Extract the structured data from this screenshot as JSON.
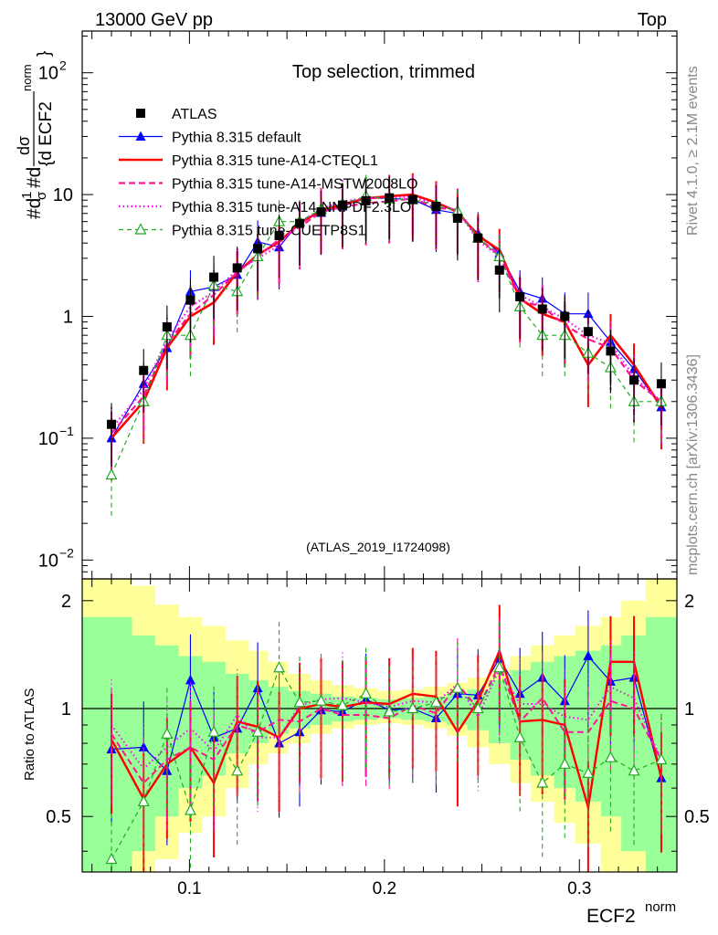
{
  "header": {
    "energy_label": "13000 GeV pp",
    "process_label": "Top",
    "right_label": "Rivet 4.1.0, ≥ 2.1M events",
    "site_label": "mcplots.cern.ch [arXiv:1306.3436]",
    "analysis_label": "(ATLAS_2019_I1724098)"
  },
  "chart_data": [
    {
      "type": "line",
      "panel": "main",
      "title": "Top selection, trimmed",
      "ylabel": "#d¹⁄σ #d dσ / {d ECF2 norm}",
      "ylabel_parts": {
        "prefix": "#d",
        "frac1_num": "1",
        "frac1_den": "σ",
        "mid": "#d",
        "frac2_num": "dσ",
        "frac2_den": "{d ECF2",
        "sup": "norm",
        "close": "}"
      },
      "yscale": "log",
      "ylim": [
        0.007,
        220
      ],
      "xlim": [
        0.045,
        0.35
      ],
      "ytick_labels": [
        {
          "base": "10",
          "exp": "−2",
          "value": 0.01
        },
        {
          "base": "10",
          "exp": "−1",
          "value": 0.1
        },
        {
          "base": "1",
          "exp": "",
          "value": 1
        },
        {
          "base": "10",
          "exp": "",
          "value": 10
        },
        {
          "base": "10",
          "exp": "2",
          "value": 100
        }
      ],
      "x": [
        0.06,
        0.0765,
        0.0885,
        0.1005,
        0.1125,
        0.1245,
        0.135,
        0.146,
        0.1565,
        0.1675,
        0.1785,
        0.1905,
        0.2025,
        0.2145,
        0.2265,
        0.2375,
        0.248,
        0.259,
        0.2695,
        0.281,
        0.2925,
        0.3045,
        0.316,
        0.328,
        0.342
      ],
      "series": [
        {
          "name": "ATLAS",
          "color": "#000000",
          "marker": "square",
          "values": [
            0.13,
            0.36,
            0.82,
            1.36,
            2.1,
            2.5,
            3.6,
            4.6,
            5.8,
            7.2,
            8.2,
            8.9,
            9.4,
            9.1,
            8.0,
            6.4,
            4.4,
            2.4,
            1.45,
            1.15,
            1.0,
            0.75,
            0.52,
            0.3,
            0.28
          ]
        },
        {
          "name": "Pythia 8.315 default",
          "color": "#0000ff",
          "marker": "triangle",
          "dash": "",
          "values": [
            0.1,
            0.28,
            0.55,
            1.6,
            1.75,
            2.2,
            4.1,
            3.7,
            6.0,
            7.1,
            8.0,
            9.4,
            9.3,
            9.1,
            7.5,
            7.0,
            4.8,
            3.3,
            1.6,
            1.4,
            1.05,
            1.05,
            0.62,
            0.37,
            0.18
          ]
        },
        {
          "name": "Pythia 8.315 tune-A14-CTEQL1",
          "color": "#ff0000",
          "marker": "",
          "dash": "",
          "width": 2.6,
          "values": [
            0.1,
            0.2,
            0.55,
            1.0,
            1.3,
            2.3,
            3.2,
            4.1,
            5.8,
            7.4,
            8.3,
            9.3,
            9.7,
            10.0,
            8.6,
            7.2,
            4.6,
            3.5,
            1.4,
            1.05,
            0.9,
            0.4,
            0.7,
            0.4,
            0.18
          ]
        },
        {
          "name": "Pythia 8.315 tune-A14-MSTW2008LO",
          "color": "#ff1493",
          "marker": "",
          "dash": "7,4",
          "width": 2.2,
          "values": [
            0.11,
            0.22,
            0.6,
            1.05,
            1.5,
            2.3,
            3.1,
            4.3,
            5.4,
            7.2,
            7.9,
            8.5,
            8.8,
            9.3,
            7.8,
            7.5,
            4.4,
            3.2,
            1.35,
            1.2,
            0.85,
            0.65,
            0.55,
            0.3,
            0.2
          ]
        },
        {
          "name": "Pythia 8.315 tune-A14-NNPDF2.3LO",
          "color": "#ff00ff",
          "marker": "",
          "dash": "1.5,3",
          "width": 2.2,
          "values": [
            0.12,
            0.25,
            0.65,
            1.2,
            1.6,
            2.4,
            3.0,
            3.8,
            5.9,
            7.6,
            8.8,
            9.3,
            9.5,
            9.6,
            8.3,
            7.4,
            4.2,
            3.1,
            1.5,
            1.2,
            0.95,
            0.7,
            0.6,
            0.32,
            0.2
          ]
        },
        {
          "name": "Pythia 8.315 tune-CUETP8S1",
          "color": "#22aa22",
          "marker": "open-triangle",
          "dash": "5,4",
          "width": 1.2,
          "values": [
            0.05,
            0.2,
            0.7,
            0.7,
            1.8,
            1.6,
            3.1,
            6.0,
            6.0,
            7.6,
            8.4,
            9.7,
            9.2,
            9.1,
            8.3,
            7.3,
            4.4,
            3.1,
            1.2,
            0.7,
            0.7,
            0.5,
            0.38,
            0.2,
            0.2
          ]
        }
      ],
      "legend_position": "top-left"
    },
    {
      "type": "line",
      "panel": "ratio",
      "ylabel": "Ratio to ATLAS",
      "xlabel": "ECF2",
      "xlabel_sup": "norm",
      "ylim": [
        0.35,
        2.3
      ],
      "xlim": [
        0.045,
        0.35
      ],
      "xtick_labels": [
        "0.1",
        "0.2",
        "0.3"
      ],
      "xtick_values": [
        0.1,
        0.2,
        0.3
      ],
      "ytick_labels": [
        "0.5",
        "1",
        "2"
      ],
      "ytick_values": [
        0.5,
        1,
        2
      ],
      "band_edges": [
        0.045,
        0.0705,
        0.0825,
        0.0945,
        0.1065,
        0.1185,
        0.1305,
        0.1405,
        0.1505,
        0.162,
        0.173,
        0.1845,
        0.1965,
        0.2085,
        0.2205,
        0.232,
        0.2425,
        0.2535,
        0.2645,
        0.275,
        0.287,
        0.298,
        0.311,
        0.3215,
        0.334,
        0.35
      ],
      "stat_band": [
        [
          0.25,
          1.8
        ],
        [
          0.4,
          1.6
        ],
        [
          0.5,
          1.5
        ],
        [
          0.6,
          1.4
        ],
        [
          0.65,
          1.35
        ],
        [
          0.75,
          1.25
        ],
        [
          0.8,
          1.2
        ],
        [
          0.85,
          1.15
        ],
        [
          0.88,
          1.12
        ],
        [
          0.9,
          1.1
        ],
        [
          0.92,
          1.08
        ],
        [
          0.93,
          1.07
        ],
        [
          0.94,
          1.06
        ],
        [
          0.93,
          1.07
        ],
        [
          0.92,
          1.08
        ],
        [
          0.9,
          1.1
        ],
        [
          0.87,
          1.13
        ],
        [
          0.8,
          1.2
        ],
        [
          0.72,
          1.28
        ],
        [
          0.65,
          1.35
        ],
        [
          0.6,
          1.4
        ],
        [
          0.55,
          1.45
        ],
        [
          0.5,
          1.5
        ],
        [
          0.4,
          1.6
        ],
        [
          0.3,
          1.8
        ]
      ],
      "syst_band": [
        [
          0.15,
          2.35
        ],
        [
          0.3,
          2.2
        ],
        [
          0.38,
          1.95
        ],
        [
          0.45,
          1.8
        ],
        [
          0.5,
          1.7
        ],
        [
          0.6,
          1.55
        ],
        [
          0.7,
          1.45
        ],
        [
          0.75,
          1.35
        ],
        [
          0.8,
          1.25
        ],
        [
          0.85,
          1.2
        ],
        [
          0.88,
          1.16
        ],
        [
          0.9,
          1.14
        ],
        [
          0.91,
          1.12
        ],
        [
          0.9,
          1.13
        ],
        [
          0.88,
          1.15
        ],
        [
          0.84,
          1.18
        ],
        [
          0.78,
          1.22
        ],
        [
          0.7,
          1.3
        ],
        [
          0.62,
          1.4
        ],
        [
          0.55,
          1.5
        ],
        [
          0.48,
          1.6
        ],
        [
          0.42,
          1.7
        ],
        [
          0.35,
          1.8
        ],
        [
          0.3,
          2.0
        ],
        [
          0.2,
          2.35
        ]
      ],
      "series": [
        {
          "name": "Pythia 8.315 default",
          "color": "#0000ff",
          "marker": "triangle",
          "dash": "",
          "width": 1.2,
          "values": [
            0.77,
            0.78,
            0.67,
            1.2,
            0.83,
            0.88,
            1.14,
            0.8,
            0.86,
            0.99,
            0.98,
            1.06,
            0.99,
            1.0,
            0.94,
            1.1,
            1.09,
            1.38,
            1.1,
            1.22,
            1.05,
            1.4,
            1.19,
            1.22,
            0.64
          ]
        },
        {
          "name": "Pythia 8.315 tune-A14-CTEQL1",
          "color": "#ff0000",
          "marker": "",
          "dash": "",
          "width": 2.4,
          "values": [
            0.82,
            0.56,
            0.7,
            0.78,
            0.62,
            0.92,
            0.89,
            0.83,
            1.0,
            1.03,
            1.01,
            1.04,
            1.03,
            1.1,
            1.08,
            0.86,
            1.05,
            1.45,
            0.92,
            0.93,
            0.9,
            0.53,
            1.35,
            1.35,
            0.64
          ]
        },
        {
          "name": "Pythia 8.315 tune-A14-MSTW2008LO",
          "color": "#ff1493",
          "marker": "",
          "dash": "7,4",
          "width": 2.0,
          "values": [
            0.85,
            0.62,
            0.72,
            0.78,
            0.72,
            0.9,
            0.86,
            0.93,
            0.92,
            1.0,
            0.96,
            0.96,
            0.94,
            1.02,
            0.97,
            1.17,
            1.0,
            1.33,
            0.92,
            1.07,
            0.86,
            0.86,
            1.05,
            1.0,
            0.72
          ]
        },
        {
          "name": "Pythia 8.315 tune-A14-NNPDF2.3LO",
          "color": "#ff00ff",
          "marker": "",
          "dash": "1.5,3",
          "width": 2.0,
          "values": [
            0.9,
            0.68,
            0.78,
            0.88,
            0.76,
            0.96,
            0.83,
            0.83,
            1.02,
            1.06,
            1.07,
            1.04,
            1.01,
            1.05,
            1.04,
            1.17,
            0.95,
            1.29,
            1.03,
            1.03,
            0.95,
            0.93,
            1.15,
            1.07,
            0.72
          ]
        },
        {
          "name": "Pythia 8.315 tune-CUETP8S1",
          "color": "#22aa22",
          "marker": "open-triangle",
          "dash": "5,4",
          "width": 1.2,
          "values": [
            0.38,
            0.55,
            0.85,
            0.52,
            0.86,
            0.67,
            0.86,
            1.3,
            1.04,
            1.05,
            1.02,
            1.1,
            0.98,
            1.0,
            1.04,
            1.14,
            1.0,
            1.3,
            0.83,
            0.62,
            0.7,
            0.66,
            0.73,
            0.67,
            0.72
          ]
        }
      ]
    }
  ]
}
